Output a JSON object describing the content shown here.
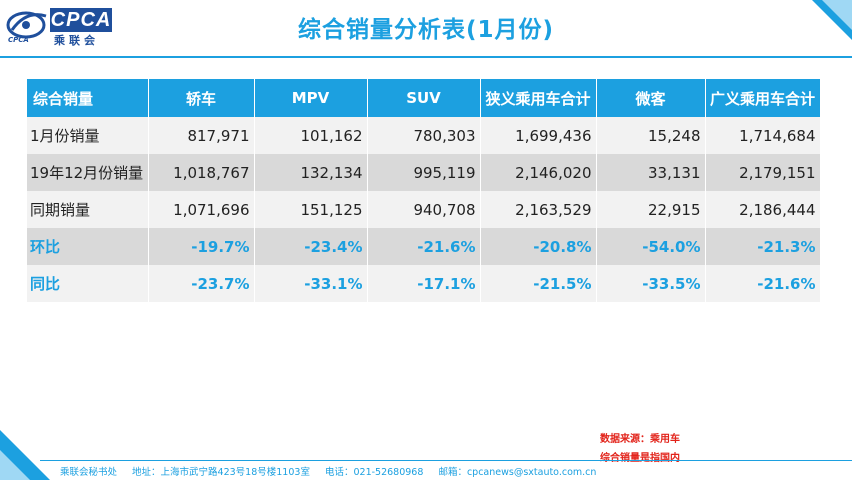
{
  "logo": {
    "text": "CPCA",
    "chinese": "乘联会",
    "sub": "CPCA"
  },
  "title": "综合销量分析表(1月份)",
  "table": {
    "headers": [
      "综合销量",
      "轿车",
      "MPV",
      "SUV",
      "狭义乘用车合计",
      "微客",
      "广义乘用车合计"
    ],
    "rows": [
      [
        "1月份销量",
        "817,971",
        "101,162",
        "780,303",
        "1,699,436",
        "15,248",
        "1,714,684"
      ],
      [
        "19年12月份销量",
        "1,018,767",
        "132,134",
        "995,119",
        "2,146,020",
        "33,131",
        "2,179,151"
      ],
      [
        "同期销量",
        "1,071,696",
        "151,125",
        "940,708",
        "2,163,529",
        "22,915",
        "2,186,444"
      ],
      [
        "环比",
        "-19.7%",
        "-23.4%",
        "-21.6%",
        "-20.8%",
        "-54.0%",
        "-21.3%"
      ],
      [
        "同比",
        "-23.7%",
        "-33.1%",
        "-17.1%",
        "-21.5%",
        "-33.5%",
        "-21.6%"
      ]
    ]
  },
  "notes": {
    "source": "数据来源：乘用车",
    "definition": "综合销量是指国内"
  },
  "footer": {
    "org": "乘联会秘书处",
    "address": "地址：上海市武宁路423号18号楼1103室",
    "phone": "电话：021-52680968",
    "email": "邮箱：cpcanews@sxtauto.com.cn"
  },
  "colors": {
    "accent": "#1ca0e0",
    "brand": "#1f4f9c",
    "note": "#e2231a"
  }
}
